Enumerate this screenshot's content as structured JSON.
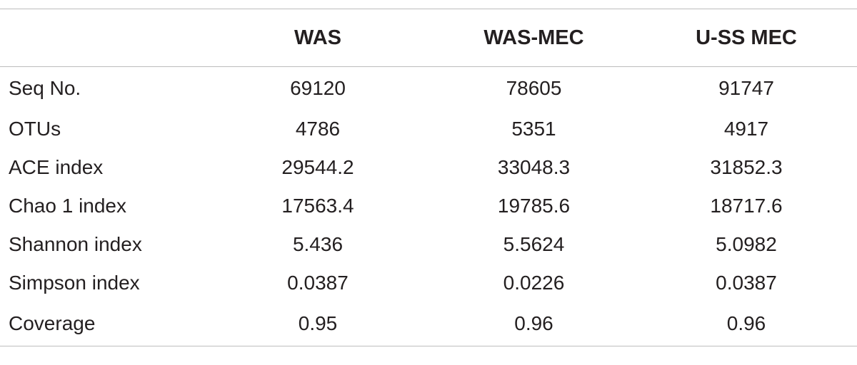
{
  "table": {
    "columns": [
      "",
      "WAS",
      "WAS-MEC",
      "U-SS MEC"
    ],
    "rows": [
      {
        "label": "Seq No.",
        "was": "69120",
        "was_mec": "78605",
        "uss_mec": "91747"
      },
      {
        "label": "OTUs",
        "was": "4786",
        "was_mec": "5351",
        "uss_mec": "4917"
      },
      {
        "label": "ACE index",
        "was": "29544.2",
        "was_mec": "33048.3",
        "uss_mec": "31852.3"
      },
      {
        "label": "Chao 1 index",
        "was": "17563.4",
        "was_mec": "19785.6",
        "uss_mec": "18717.6"
      },
      {
        "label": "Shannon index",
        "was": "5.436",
        "was_mec": "5.5624",
        "uss_mec": "5.0982"
      },
      {
        "label": "Simpson index",
        "was": "0.0387",
        "was_mec": "0.0226",
        "uss_mec": "0.0387"
      },
      {
        "label": "Coverage",
        "was": "0.95",
        "was_mec": "0.96",
        "uss_mec": "0.96"
      }
    ]
  }
}
